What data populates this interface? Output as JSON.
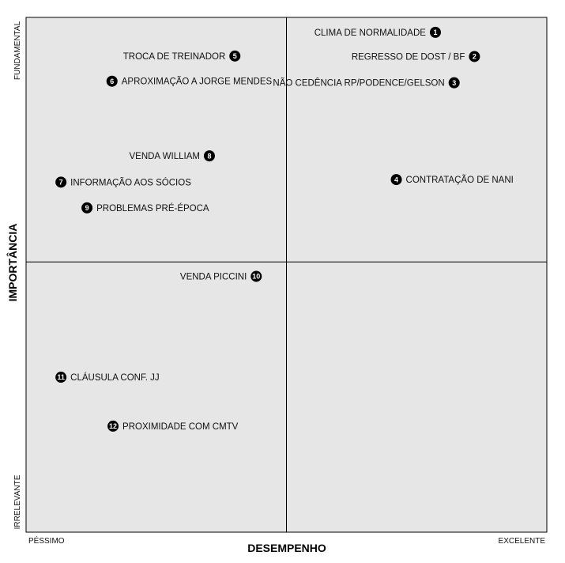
{
  "chart_data": {
    "type": "scatter",
    "xlabel": "DESEMPENHO",
    "ylabel": "IMPORTÂNCIA",
    "x_tick_labels": [
      "PÉSSIMO",
      "EXCELENTE"
    ],
    "y_tick_labels": [
      "IRRELEVANTE",
      "FUNDAMENTAL"
    ],
    "xlim": [
      0,
      100
    ],
    "ylim": [
      0,
      100
    ],
    "quadrant_split": {
      "x": 50,
      "y": 52.5
    },
    "grid": false,
    "colors": {
      "plot_bg": "#e6e6e6",
      "marker": "#000000",
      "marker_text": "#ffffff"
    },
    "points": [
      {
        "n": "1",
        "label": "CLIMA DE NORMALIDADE",
        "x": 78.6,
        "y": 97.1,
        "label_side": "left"
      },
      {
        "n": "2",
        "label": "REGRESSO DE DOST / BF",
        "x": 86.1,
        "y": 92.4,
        "label_side": "left"
      },
      {
        "n": "3",
        "label": "NÃO CEDÊNCIA RP/PODENCE/GELSON",
        "x": 82.2,
        "y": 87.3,
        "label_side": "left"
      },
      {
        "n": "4",
        "label": "CONTRATAÇÃO DE NANI",
        "x": 71.1,
        "y": 68.5,
        "label_side": "right"
      },
      {
        "n": "5",
        "label": "TROCA DE TREINADOR",
        "x": 40.1,
        "y": 92.5,
        "label_side": "left"
      },
      {
        "n": "6",
        "label": "APROXIMAÇÃO A JORGE MENDES",
        "x": 16.5,
        "y": 87.6,
        "label_side": "right"
      },
      {
        "n": "7",
        "label": "INFORMAÇÃO AOS SÓCIOS",
        "x": 6.7,
        "y": 68.0,
        "label_side": "right"
      },
      {
        "n": "8",
        "label": "VENDA WILLIAM",
        "x": 35.2,
        "y": 73.1,
        "label_side": "left"
      },
      {
        "n": "9",
        "label": "PROBLEMAS PRÉ-ÉPOCA",
        "x": 11.7,
        "y": 63.0,
        "label_side": "right"
      },
      {
        "n": "10",
        "label": "VENDA PICCINI",
        "x": 44.2,
        "y": 49.7,
        "label_side": "left"
      },
      {
        "n": "11",
        "label": "CLÁUSULA CONF. JJ",
        "x": 6.7,
        "y": 30.1,
        "label_side": "right"
      },
      {
        "n": "12",
        "label": "PROXIMIDADE COM CMTV",
        "x": 16.7,
        "y": 20.6,
        "label_side": "right"
      }
    ]
  }
}
